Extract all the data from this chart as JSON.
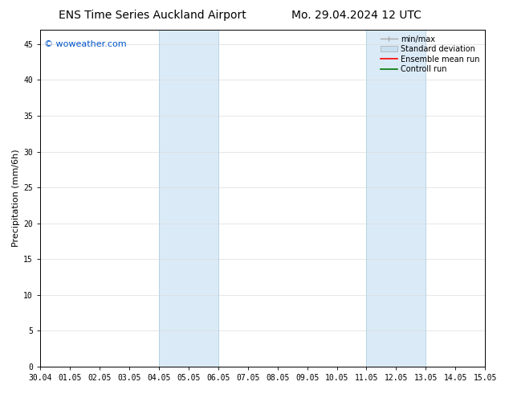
{
  "title_left": "ENS Time Series Auckland Airport",
  "title_right": "Mo. 29.04.2024 12 UTC",
  "ylabel": "Precipitation (mm/6h)",
  "watermark": "© woweather.com",
  "watermark_color": "#0055cc",
  "xtick_labels": [
    "30.04",
    "01.05",
    "02.05",
    "03.05",
    "04.05",
    "05.05",
    "06.05",
    "07.05",
    "08.05",
    "09.05",
    "10.05",
    "11.05",
    "12.05",
    "13.05",
    "14.05",
    "15.05"
  ],
  "shaded_regions": [
    {
      "xstart": 4,
      "xend": 6,
      "color": "#daeaf7"
    },
    {
      "xstart": 11,
      "xend": 13,
      "color": "#daeaf7"
    }
  ],
  "ylim": [
    0,
    47
  ],
  "yticks": [
    0,
    5,
    10,
    15,
    20,
    25,
    30,
    35,
    40,
    45
  ],
  "bg_color": "#ffffff",
  "grid_color": "#dddddd",
  "spine_color": "#000000",
  "title_fontsize": 10,
  "tick_fontsize": 7,
  "ylabel_fontsize": 8,
  "watermark_fontsize": 8,
  "legend_fontsize": 7,
  "minmax_color": "#aaaaaa",
  "stddev_color": "#c8dff0",
  "ensemble_color": "#ff0000",
  "control_color": "#007700"
}
